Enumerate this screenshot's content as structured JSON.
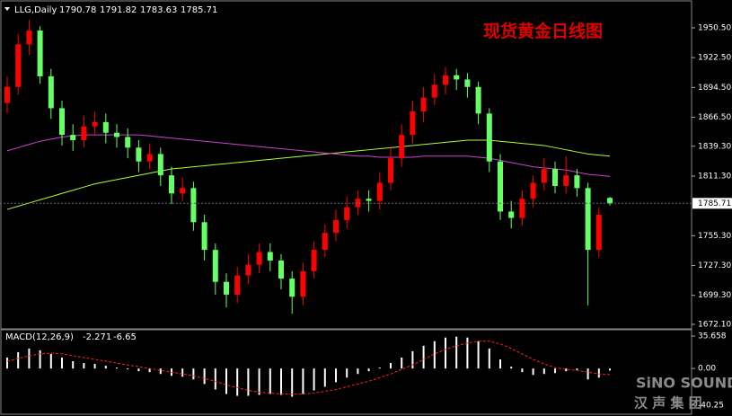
{
  "chart_data": [
    {
      "type": "candlestick",
      "title": "现货黄金日线图",
      "symbol": "LLG,Daily",
      "up_color": "#ff0000",
      "down_color": "#66ff66",
      "open": [
        1880,
        1895,
        1935,
        1948,
        1905,
        1875,
        1850,
        1845,
        1858,
        1862,
        1852,
        1848,
        1838,
        1825,
        1832,
        1812,
        1795,
        1800,
        1768,
        1742,
        1712,
        1700,
        1718,
        1728,
        1740,
        1732,
        1715,
        1698,
        1722,
        1742,
        1758,
        1770,
        1782,
        1790,
        1788,
        1805,
        1828,
        1850,
        1872,
        1885,
        1897,
        1906,
        1902,
        1895,
        1870,
        1825,
        1778,
        1772,
        1790,
        1805,
        1818,
        1802,
        1812,
        1800,
        1742,
        1790.78
      ],
      "high": [
        1905,
        1945,
        1958,
        1952,
        1912,
        1882,
        1860,
        1868,
        1872,
        1870,
        1860,
        1856,
        1845,
        1842,
        1838,
        1820,
        1810,
        1806,
        1775,
        1748,
        1720,
        1726,
        1738,
        1748,
        1748,
        1738,
        1722,
        1730,
        1750,
        1766,
        1780,
        1792,
        1798,
        1798,
        1815,
        1838,
        1860,
        1882,
        1895,
        1907,
        1914,
        1912,
        1908,
        1900,
        1875,
        1832,
        1788,
        1798,
        1812,
        1828,
        1825,
        1830,
        1818,
        1805,
        1782,
        1791.82
      ],
      "low": [
        1870,
        1888,
        1925,
        1898,
        1865,
        1840,
        1835,
        1838,
        1850,
        1842,
        1838,
        1828,
        1815,
        1818,
        1802,
        1785,
        1788,
        1760,
        1732,
        1700,
        1688,
        1692,
        1710,
        1720,
        1722,
        1705,
        1682,
        1690,
        1715,
        1735,
        1750,
        1762,
        1775,
        1778,
        1780,
        1798,
        1820,
        1842,
        1862,
        1878,
        1888,
        1892,
        1885,
        1860,
        1815,
        1770,
        1762,
        1765,
        1782,
        1798,
        1795,
        1795,
        1792,
        1690,
        1735,
        1783.63
      ],
      "close": [
        1895,
        1935,
        1948,
        1905,
        1875,
        1850,
        1845,
        1858,
        1862,
        1852,
        1848,
        1838,
        1825,
        1832,
        1812,
        1795,
        1800,
        1768,
        1742,
        1712,
        1700,
        1718,
        1728,
        1740,
        1732,
        1715,
        1698,
        1722,
        1742,
        1758,
        1770,
        1782,
        1790,
        1788,
        1805,
        1828,
        1850,
        1872,
        1885,
        1897,
        1906,
        1902,
        1895,
        1870,
        1825,
        1778,
        1772,
        1790,
        1805,
        1818,
        1802,
        1812,
        1800,
        1742,
        1775,
        1785.71
      ],
      "overlays": [
        {
          "color": "#adff2f",
          "values": [
            1780,
            1783,
            1786,
            1789,
            1792,
            1795,
            1798,
            1801,
            1804,
            1806,
            1808,
            1810,
            1812,
            1814,
            1816,
            1818,
            1819,
            1820,
            1821,
            1822,
            1823,
            1824,
            1825,
            1826,
            1827,
            1828,
            1829,
            1830,
            1831,
            1832,
            1833,
            1834,
            1835,
            1836,
            1837,
            1838,
            1839,
            1840,
            1841,
            1842,
            1843,
            1844,
            1845,
            1845,
            1845,
            1844,
            1843,
            1842,
            1841,
            1840,
            1838,
            1836,
            1834,
            1832,
            1831,
            1830
          ]
        },
        {
          "color": "#d040d0",
          "values": [
            1835,
            1838,
            1841,
            1844,
            1846,
            1848,
            1849,
            1850,
            1850,
            1850,
            1850,
            1850,
            1850,
            1849,
            1848,
            1847,
            1846,
            1845,
            1844,
            1843,
            1842,
            1841,
            1840,
            1839,
            1838,
            1837,
            1836,
            1835,
            1834,
            1833,
            1832,
            1831,
            1830,
            1830,
            1829,
            1829,
            1829,
            1829,
            1830,
            1830,
            1830,
            1830,
            1830,
            1829,
            1828,
            1826,
            1824,
            1822,
            1820,
            1819,
            1818,
            1817,
            1815,
            1813,
            1812,
            1811
          ]
        }
      ],
      "ylim": [
        1668.7,
        1972.4
      ],
      "yticks": [
        {
          "value": 1950.5,
          "label": "1950.50"
        },
        {
          "value": 1922.5,
          "label": "1922.50"
        },
        {
          "value": 1894.5,
          "label": "1894.50"
        },
        {
          "value": 1866.5,
          "label": "1866.50"
        },
        {
          "value": 1839.3,
          "label": "1839.30"
        },
        {
          "value": 1811.3,
          "label": "1811.30"
        },
        {
          "value": 1755.3,
          "label": "1755.30"
        },
        {
          "value": 1727.3,
          "label": "1727.30"
        },
        {
          "value": 1699.3,
          "label": "1699.30"
        },
        {
          "value": 1672.1,
          "label": "1672.10"
        }
      ]
    },
    {
      "type": "macd",
      "name": "MACD(12,26,9)",
      "histogram": {
        "color": "#ffffff",
        "values": [
          12,
          18,
          22,
          20,
          16,
          12,
          8,
          6,
          5,
          3,
          1,
          -1,
          -3,
          -4,
          -6,
          -8,
          -9,
          -12,
          -17,
          -23,
          -28,
          -30,
          -30,
          -29,
          -28,
          -29,
          -31,
          -28,
          -24,
          -20,
          -15,
          -10,
          -6,
          -3,
          1,
          6,
          12,
          19,
          25,
          30,
          34,
          35,
          34,
          30,
          22,
          10,
          2,
          -4,
          -7,
          -6,
          -5,
          -3,
          -2,
          -12,
          -10,
          -2.271
        ]
      },
      "signal": {
        "color": "#ff2020",
        "values": [
          8,
          11,
          14,
          16,
          17,
          16,
          14,
          12,
          10,
          8,
          6,
          4,
          2,
          0,
          -2,
          -4,
          -6,
          -8,
          -11,
          -14,
          -18,
          -21,
          -24,
          -26,
          -27,
          -28,
          -28,
          -28,
          -27,
          -25,
          -23,
          -20,
          -17,
          -14,
          -10,
          -6,
          -1,
          4,
          10,
          16,
          21,
          25,
          28,
          30,
          30,
          27,
          22,
          16,
          10,
          5,
          1,
          -1,
          -2,
          -4,
          -6,
          -6.65
        ]
      },
      "ylim": [
        -49.2,
        41.6
      ],
      "yticks": [
        35.658,
        {
          "value": 0,
          "label": "0.00"
        },
        -40.25
      ]
    }
  ],
  "watermark": {
    "brand": "SiNO SOUND",
    "chinese": "汉 声 集 团"
  }
}
